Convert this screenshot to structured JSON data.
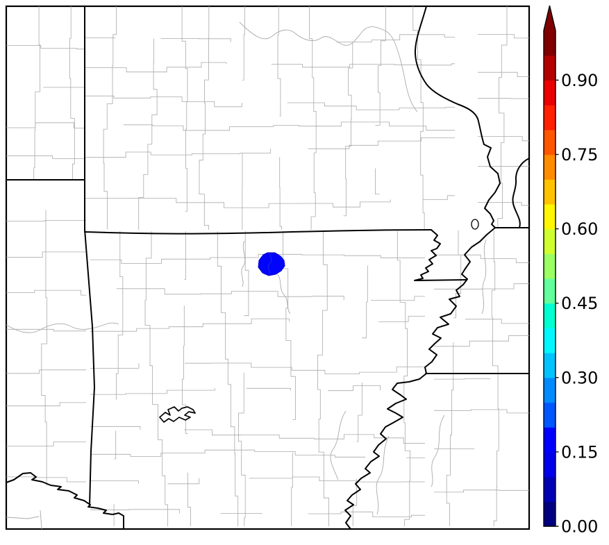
{
  "figure": {
    "background_color": "#ffffff",
    "frame_color": "#000000",
    "county_line_color": "#a9a9a9",
    "state_line_color": "#000000",
    "lake_line_color": "#000000"
  },
  "map": {
    "type": "county-choropleth-probability-map",
    "region_color": "#0103fa",
    "region_inner_line_color": "#2233dd",
    "region_value_estimate_from_colorbar": "0.15–0.20",
    "shaded_region_count": 1
  },
  "colorbar": {
    "orientation": "vertical",
    "extend": "max",
    "range_min": 0.0,
    "range_max": 1.0,
    "arrow_color": "#800000",
    "outline_color": "#000000",
    "tick_label_color": "#000000",
    "ticks": [
      {
        "label": "0.90",
        "value": 0.9
      },
      {
        "label": "0.75",
        "value": 0.75
      },
      {
        "label": "0.60",
        "value": 0.6
      },
      {
        "label": "0.45",
        "value": 0.45
      },
      {
        "label": "0.30",
        "value": 0.3
      },
      {
        "label": "0.15",
        "value": 0.15
      },
      {
        "label": "0.00",
        "value": 0.0
      }
    ],
    "segment_colors_bottom_to_top": [
      "#000080",
      "#0000b5",
      "#0000ea",
      "#0000ff",
      "#0057ff",
      "#008cff",
      "#00c2ff",
      "#00f7ff",
      "#00ffd1",
      "#63ff9c",
      "#9cff63",
      "#d1ff2e",
      "#fff700",
      "#ffc200",
      "#ff8c00",
      "#ff5700",
      "#ff2100",
      "#ea0000",
      "#b50000",
      "#800000"
    ]
  }
}
